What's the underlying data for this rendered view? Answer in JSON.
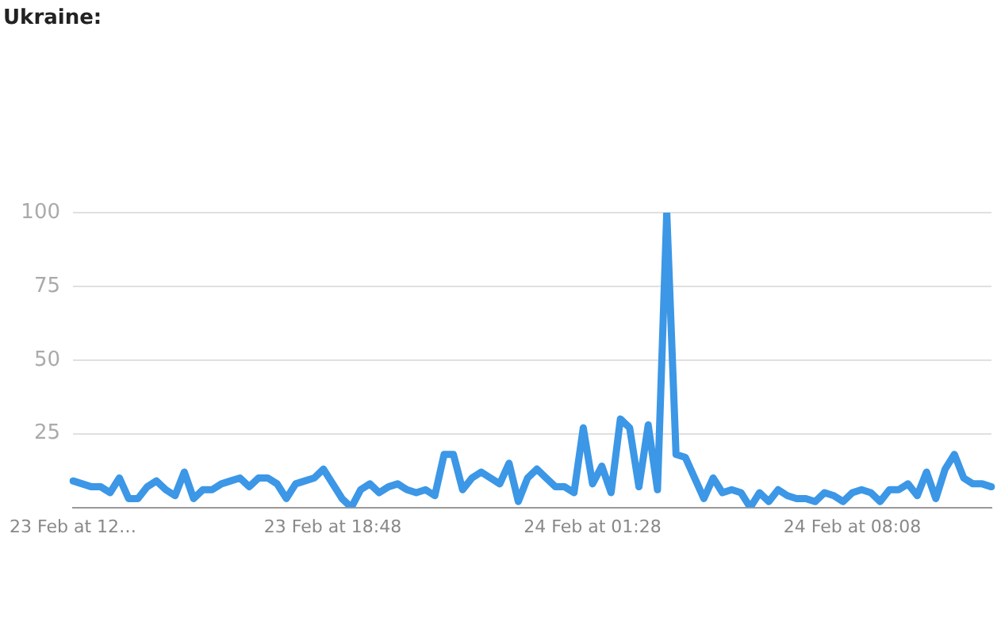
{
  "chart_data": {
    "type": "line",
    "title": "Ukraine:",
    "categories": [
      "23 Feb at 12…",
      null,
      null,
      null,
      null,
      null,
      null,
      null,
      null,
      null,
      null,
      null,
      null,
      null,
      null,
      null,
      null,
      null,
      null,
      null,
      null,
      null,
      null,
      null,
      null,
      null,
      null,
      null,
      "23 Feb at 18:48",
      null,
      null,
      null,
      null,
      null,
      null,
      null,
      null,
      null,
      null,
      null,
      null,
      null,
      null,
      null,
      null,
      null,
      null,
      null,
      null,
      null,
      null,
      null,
      null,
      null,
      null,
      null,
      "24 Feb at 01:28",
      null,
      null,
      null,
      null,
      null,
      null,
      null,
      null,
      null,
      null,
      null,
      null,
      null,
      null,
      null,
      null,
      null,
      null,
      null,
      null,
      null,
      null,
      null,
      null,
      null,
      null,
      null,
      "24 Feb at 08:08",
      null,
      null,
      null,
      null,
      null,
      null,
      null,
      null,
      null,
      null,
      null,
      null,
      null,
      null,
      null
    ],
    "series": [
      {
        "color": "#3c97e6",
        "values": [
          9,
          8,
          7,
          7,
          5,
          10,
          3,
          3,
          7,
          9,
          6,
          4,
          12,
          3,
          6,
          6,
          8,
          9,
          10,
          7,
          10,
          10,
          8,
          3,
          8,
          9,
          10,
          13,
          8,
          3,
          0,
          6,
          8,
          5,
          7,
          8,
          6,
          5,
          6,
          4,
          18,
          18,
          6,
          10,
          12,
          10,
          8,
          15,
          2,
          10,
          13,
          10,
          7,
          7,
          5,
          27,
          8,
          14,
          5,
          30,
          27,
          7,
          28,
          6,
          100,
          18,
          17,
          10,
          3,
          10,
          5,
          6,
          5,
          0,
          5,
          2,
          6,
          4,
          3,
          3,
          2,
          5,
          4,
          2,
          5,
          6,
          5,
          2,
          6,
          6,
          8,
          4,
          12,
          3,
          13,
          18,
          10,
          8,
          8,
          7
        ]
      }
    ],
    "ylim": [
      0,
      100
    ],
    "yticks": [
      25,
      50,
      75,
      100
    ],
    "grid": "y",
    "marker": "none",
    "line_style": "solid"
  }
}
